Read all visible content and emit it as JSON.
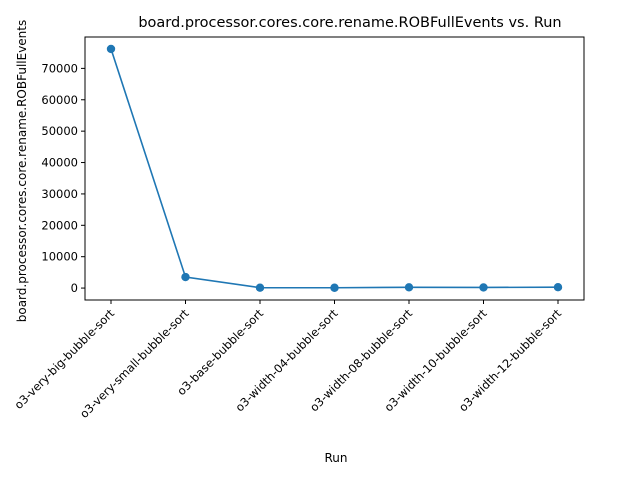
{
  "chart_data": {
    "type": "line",
    "title": "board.processor.cores.core.rename.ROBFullEvents vs. Run",
    "xlabel": "Run",
    "ylabel": "board.processor.cores.core.rename.ROBFullEvents",
    "categories": [
      "o3-very-big-bubble-sort",
      "o3-very-small-bubble-sort",
      "o3-base-bubble-sort",
      "o3-width-04-bubble-sort",
      "o3-width-08-bubble-sort",
      "o3-width-10-bubble-sort",
      "o3-width-12-bubble-sort"
    ],
    "values": [
      76200,
      3500,
      120,
      100,
      250,
      200,
      280
    ],
    "ylim": [
      -3800,
      80000
    ],
    "yticks": [
      0,
      10000,
      20000,
      30000,
      40000,
      50000,
      60000,
      70000
    ],
    "grid": false,
    "legend": "none",
    "colors": {
      "line": "#1f77b4",
      "marker": "#1f77b4"
    }
  }
}
